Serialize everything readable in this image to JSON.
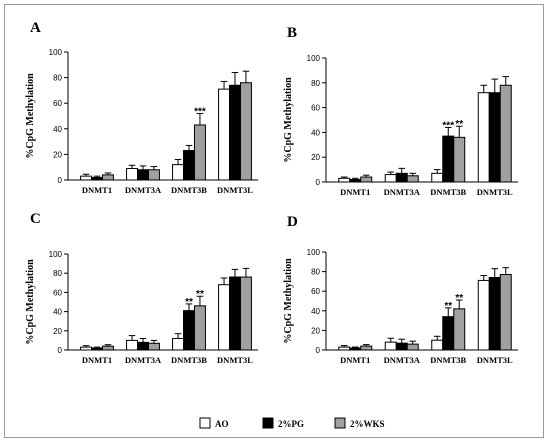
{
  "chart_data": [
    {
      "panel": "A",
      "type": "bar",
      "ylabel": "%CpG Methylation",
      "ylim": [
        0,
        100
      ],
      "yticks": [
        0,
        20,
        40,
        60,
        80,
        100
      ],
      "categories": [
        "DNMT1",
        "DNMT3A",
        "DNMT3B",
        "DNMT3L"
      ],
      "series": [
        {
          "name": "AO",
          "color": "#ffffff",
          "values": [
            3,
            9,
            12,
            71
          ],
          "errors": [
            1.5,
            2.5,
            4,
            6
          ]
        },
        {
          "name": "2%PG",
          "color": "#000000",
          "values": [
            2,
            8,
            23,
            74
          ],
          "errors": [
            1,
            3,
            4,
            10
          ]
        },
        {
          "name": "2%WKS",
          "color": "#a0a0a0",
          "values": [
            4,
            8,
            43,
            76
          ],
          "errors": [
            1.5,
            2.5,
            9,
            9
          ]
        }
      ],
      "annotations": [
        {
          "category": 2,
          "series": 2,
          "text": "***"
        }
      ]
    },
    {
      "panel": "B",
      "type": "bar",
      "ylabel": "%CpG Methylation",
      "ylim": [
        0,
        100
      ],
      "yticks": [
        0,
        20,
        40,
        60,
        80,
        100
      ],
      "categories": [
        "DNMT1",
        "DNMT3A",
        "DNMT3B",
        "DNMT3L"
      ],
      "series": [
        {
          "name": "AO",
          "color": "#ffffff",
          "values": [
            3,
            6,
            7,
            72
          ],
          "errors": [
            1,
            2,
            3,
            6
          ]
        },
        {
          "name": "2%PG",
          "color": "#000000",
          "values": [
            2,
            7,
            37,
            72
          ],
          "errors": [
            1,
            4,
            7,
            11
          ]
        },
        {
          "name": "2%WKS",
          "color": "#a0a0a0",
          "values": [
            4,
            5,
            36,
            78
          ],
          "errors": [
            1.5,
            2,
            9,
            7
          ]
        }
      ],
      "annotations": [
        {
          "category": 2,
          "series": 1,
          "text": "***"
        },
        {
          "category": 2,
          "series": 2,
          "text": "**"
        }
      ]
    },
    {
      "panel": "C",
      "type": "bar",
      "ylabel": "%CpG Methylation",
      "ylim": [
        0,
        100
      ],
      "yticks": [
        0,
        20,
        40,
        60,
        80,
        100
      ],
      "categories": [
        "DNMT1",
        "DNMT3A",
        "DNMT3B",
        "DNMT3L"
      ],
      "series": [
        {
          "name": "AO",
          "color": "#ffffff",
          "values": [
            3,
            10,
            12,
            68
          ],
          "errors": [
            1.5,
            5,
            5,
            7
          ]
        },
        {
          "name": "2%PG",
          "color": "#000000",
          "values": [
            2,
            8,
            41,
            76
          ],
          "errors": [
            1,
            4,
            7,
            8
          ]
        },
        {
          "name": "2%WKS",
          "color": "#a0a0a0",
          "values": [
            4,
            7,
            46,
            76
          ],
          "errors": [
            1.5,
            3,
            10,
            9
          ]
        }
      ],
      "annotations": [
        {
          "category": 2,
          "series": 1,
          "text": "**"
        },
        {
          "category": 2,
          "series": 2,
          "text": "**"
        }
      ]
    },
    {
      "panel": "D",
      "type": "bar",
      "ylabel": "%CpG Methylation",
      "ylim": [
        0,
        100
      ],
      "yticks": [
        0,
        20,
        40,
        60,
        80,
        100
      ],
      "categories": [
        "DNMT1",
        "DNMT3A",
        "DNMT3B",
        "DNMT3L"
      ],
      "series": [
        {
          "name": "AO",
          "color": "#ffffff",
          "values": [
            3,
            8,
            10,
            71
          ],
          "errors": [
            1.5,
            4,
            4,
            5
          ]
        },
        {
          "name": "2%PG",
          "color": "#000000",
          "values": [
            2,
            7,
            34,
            74
          ],
          "errors": [
            1,
            4,
            9,
            9
          ]
        },
        {
          "name": "2%WKS",
          "color": "#a0a0a0",
          "values": [
            4,
            6,
            42,
            77
          ],
          "errors": [
            1.5,
            3,
            9,
            7
          ]
        }
      ],
      "annotations": [
        {
          "category": 2,
          "series": 1,
          "text": "**"
        },
        {
          "category": 2,
          "series": 2,
          "text": "**"
        }
      ]
    }
  ],
  "legend": {
    "placement": "bottom-center",
    "items": [
      {
        "label": "AO",
        "color": "#ffffff"
      },
      {
        "label": "2%PG",
        "color": "#000000"
      },
      {
        "label": "2%WKS",
        "color": "#a0a0a0"
      }
    ]
  }
}
